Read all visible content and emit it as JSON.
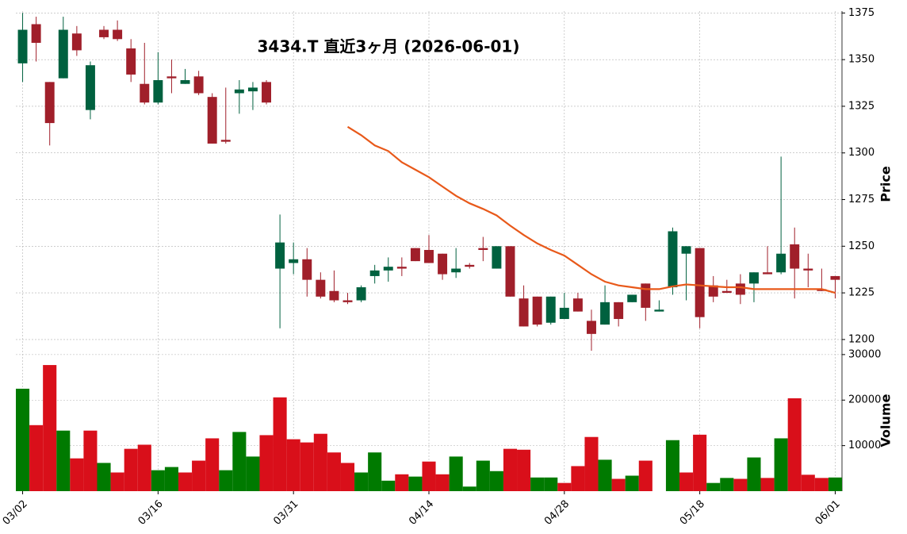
{
  "chart_data": {
    "type": "candlestick",
    "title": "3434.T  直近3ヶ月 (2026-06-01)",
    "categories": [
      "03/02",
      null,
      null,
      null,
      null,
      null,
      null,
      null,
      null,
      null,
      "03/16",
      null,
      null,
      null,
      null,
      null,
      null,
      null,
      null,
      null,
      "03/31",
      null,
      null,
      null,
      null,
      null,
      null,
      null,
      null,
      null,
      "04/14",
      null,
      null,
      null,
      null,
      null,
      null,
      null,
      null,
      null,
      "04/28",
      null,
      null,
      null,
      null,
      null,
      null,
      null,
      null,
      null,
      "05/18",
      null,
      null,
      null,
      null,
      null,
      null,
      null,
      null,
      null,
      "06/01"
    ],
    "open": [
      1348,
      1369,
      1338,
      1340,
      1364,
      1323,
      1366,
      1366,
      1356,
      1337,
      1327,
      1341,
      1337,
      1341,
      1330,
      1307,
      1332,
      1333,
      1338,
      1238,
      1241,
      1243,
      1232,
      1226,
      1221,
      1221,
      1234,
      1237,
      1239,
      1249,
      1248,
      1246,
      1236,
      1240,
      1249,
      1238,
      1250,
      1222,
      1223,
      1209,
      1211,
      1222,
      1210,
      1208,
      1220,
      1220,
      1230,
      1215,
      1228,
      1246,
      1249,
      1229,
      1226,
      1230,
      1230,
      1236,
      1236,
      1251,
      1238,
      1227,
      1234
    ],
    "high": [
      1375,
      1373,
      1338,
      1373,
      1368,
      1349,
      1368,
      1371,
      1361,
      1359,
      1354,
      1350,
      1345,
      1344,
      1332,
      1335,
      1339,
      1338,
      1339,
      1267,
      1252,
      1249,
      1236,
      1237,
      1225,
      1229,
      1240,
      1244,
      1244,
      1249,
      1256,
      1246,
      1249,
      1241,
      1255,
      1250,
      1250,
      1229,
      1223,
      1223,
      1225,
      1225,
      1216,
      1229,
      1220,
      1224,
      1230,
      1221,
      1260,
      1250,
      1249,
      1234,
      1232,
      1235,
      1236,
      1250,
      1298,
      1260,
      1246,
      1238,
      1234
    ],
    "low": [
      1338,
      1349,
      1304,
      1340,
      1352,
      1318,
      1361,
      1360,
      1338,
      1326,
      1326,
      1332,
      1337,
      1331,
      1305,
      1305,
      1321,
      1323,
      1326,
      1206,
      1235,
      1223,
      1222,
      1220,
      1219,
      1220,
      1230,
      1231,
      1234,
      1242,
      1241,
      1232,
      1233,
      1238,
      1242,
      1238,
      1223,
      1207,
      1207,
      1208,
      1211,
      1215,
      1194,
      1208,
      1207,
      1220,
      1210,
      1215,
      1224,
      1221,
      1206,
      1220,
      1225,
      1219,
      1220,
      1235,
      1235,
      1222,
      1228,
      1226,
      1222
    ],
    "close": [
      1366,
      1359,
      1316,
      1366,
      1355,
      1347,
      1362,
      1361,
      1342,
      1327,
      1339,
      1340,
      1339,
      1332,
      1305,
      1306,
      1334,
      1335,
      1327,
      1252,
      1243,
      1232,
      1223,
      1221,
      1220,
      1228,
      1237,
      1239,
      1238,
      1242,
      1241,
      1235,
      1238,
      1239,
      1248,
      1250,
      1223,
      1207,
      1208,
      1223,
      1217,
      1215,
      1203,
      1220,
      1211,
      1224,
      1217,
      1216,
      1258,
      1250,
      1212,
      1223,
      1225,
      1224,
      1236,
      1235,
      1246,
      1238,
      1237,
      1226,
      1232
    ],
    "up_color": "#00613f",
    "down_color": "#a01f2a",
    "series": [
      {
        "color": "#e8591a",
        "values": [
          null,
          null,
          null,
          null,
          null,
          null,
          null,
          null,
          null,
          null,
          null,
          null,
          null,
          null,
          null,
          null,
          null,
          null,
          null,
          null,
          null,
          null,
          null,
          null,
          1314,
          1309.5,
          1304,
          1301,
          1295,
          1291,
          1287,
          1282,
          1277,
          1273,
          1270,
          1266.5,
          1261,
          1256,
          1251.5,
          1248,
          1245,
          1240,
          1235,
          1231,
          1229,
          1228,
          1227,
          1227,
          1228.5,
          1229.5,
          1229,
          1228.5,
          1228,
          1228,
          1227,
          1227,
          1227,
          1227,
          1227,
          1227,
          1225
        ]
      }
    ],
    "ylim": [
      1194,
      1376
    ],
    "yticks": [
      1200,
      1225,
      1250,
      1275,
      1300,
      1325,
      1350,
      1375
    ],
    "ylabel": "Price",
    "grid": true,
    "volume": {
      "values": [
        22500,
        14500,
        27700,
        13300,
        7200,
        13300,
        6200,
        4100,
        9300,
        10200,
        4600,
        5300,
        4100,
        6700,
        11600,
        4600,
        13000,
        7600,
        12300,
        20600,
        11400,
        10700,
        12600,
        8500,
        6200,
        4100,
        8500,
        2300,
        3700,
        3200,
        6500,
        3700,
        7600,
        1000,
        6700,
        4400,
        9300,
        9100,
        3000,
        3000,
        1800,
        5500,
        11900,
        6900,
        2700,
        3400,
        6700,
        0,
        11200,
        4100,
        12400,
        1800,
        2900,
        2700,
        7400,
        2900,
        11600,
        20400,
        3600,
        2900,
        3000
      ],
      "up_color": "#007a00",
      "down_color": "#d90f1a",
      "ylim": [
        0,
        30500
      ],
      "yticks": [
        10000,
        20000,
        30000
      ],
      "ylabel": "Volume"
    }
  }
}
